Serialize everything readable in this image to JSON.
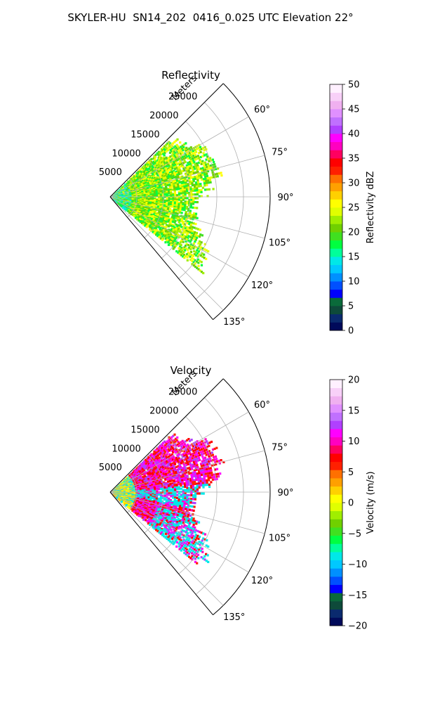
{
  "figure_title": "SKYLER-HU  SN14_202  0416_0.025 UTC Elevation 22°",
  "colors": {
    "grid": "#b0b0b0",
    "frame": "#000000"
  },
  "chart_data": [
    {
      "type": "heatmap",
      "subtype": "polar-ppi-sector",
      "title": "Reflectivity",
      "range_label": "Meters",
      "range_ticks": [
        5000,
        10000,
        15000,
        20000,
        25000
      ],
      "range_max": 30000,
      "azimuth_ticks": [
        "60°",
        "75°",
        "90°",
        "105°",
        "120°",
        "135°"
      ],
      "azimuth_range_deg": [
        45,
        140
      ],
      "colorbar": {
        "label": "Reflectivity dBZ",
        "ticks": [
          "0",
          "5",
          "10",
          "15",
          "20",
          "25",
          "30",
          "35",
          "40",
          "45",
          "50"
        ],
        "range": [
          0,
          50
        ],
        "colors": [
          "#000a5a",
          "#0a2a6e",
          "#0e4a3a",
          "#0a6a3a",
          "#0000ff",
          "#0050ff",
          "#0090ff",
          "#00c8ff",
          "#00e8e8",
          "#00ff9a",
          "#00ff40",
          "#40e020",
          "#70d000",
          "#a0ee00",
          "#e0ff00",
          "#ffff00",
          "#ffd000",
          "#ffa000",
          "#ff7000",
          "#ff2000",
          "#ff0000",
          "#ff0060",
          "#ff00c0",
          "#ff00ff",
          "#b040ff",
          "#c070ff",
          "#e090ff",
          "#f0b0f0",
          "#f8d0f8",
          "#fff0ff"
        ]
      },
      "echo_palette": [
        "#00ff40",
        "#40e020",
        "#70d000",
        "#a0ee00",
        "#e0ff00",
        "#ffff00",
        "#00ff9a",
        "#00e8e8"
      ]
    },
    {
      "type": "heatmap",
      "subtype": "polar-ppi-sector",
      "title": "Velocity",
      "range_label": "Meters",
      "range_ticks": [
        5000,
        10000,
        15000,
        20000,
        25000
      ],
      "range_max": 30000,
      "azimuth_ticks": [
        "60°",
        "75°",
        "90°",
        "105°",
        "120°",
        "135°"
      ],
      "azimuth_range_deg": [
        45,
        140
      ],
      "colorbar": {
        "label": "Velocity (m/s)",
        "ticks": [
          "−20",
          "−15",
          "−10",
          "−5",
          "0",
          "5",
          "10",
          "15",
          "20"
        ],
        "range": [
          -20,
          20
        ],
        "colors": [
          "#000a5a",
          "#0a2a6e",
          "#0e4a3a",
          "#0a6a3a",
          "#0000ff",
          "#0050ff",
          "#0090ff",
          "#00c8ff",
          "#00e8e8",
          "#00ff9a",
          "#00ff40",
          "#40e020",
          "#70d000",
          "#a0ee00",
          "#e0ff00",
          "#ffff00",
          "#ffd000",
          "#ffa000",
          "#ff7000",
          "#ff2000",
          "#ff0000",
          "#ff0060",
          "#ff00c0",
          "#ff00ff",
          "#b040ff",
          "#c070ff",
          "#e090ff",
          "#f0b0f0",
          "#f8d0f8",
          "#fff0ff"
        ]
      },
      "echo_palette": [
        "#ff00ff",
        "#ff00c0",
        "#b040ff",
        "#ff0000",
        "#ff2000",
        "#00e8e8",
        "#ffd000",
        "#ffff00"
      ]
    }
  ]
}
